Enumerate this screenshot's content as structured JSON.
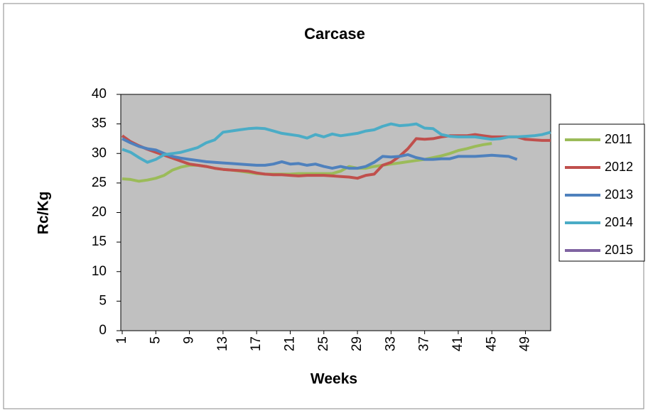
{
  "chart_data": {
    "type": "line",
    "title": "Carcase",
    "x_label": "Weeks",
    "y_label": "Rc/Kg",
    "x": [
      1,
      2,
      3,
      4,
      5,
      6,
      7,
      8,
      9,
      10,
      11,
      12,
      13,
      14,
      15,
      16,
      17,
      18,
      19,
      20,
      21,
      22,
      23,
      24,
      25,
      26,
      27,
      28,
      29,
      30,
      31,
      32,
      33,
      34,
      35,
      36,
      37,
      38,
      39,
      40,
      41,
      42,
      43,
      44,
      45,
      46,
      47,
      48,
      49,
      50,
      51,
      52
    ],
    "xlim": [
      1,
      52
    ],
    "xticks": [
      1,
      5,
      9,
      13,
      17,
      21,
      25,
      29,
      33,
      37,
      41,
      45,
      49
    ],
    "ylim": [
      0,
      40
    ],
    "yticks": [
      0,
      5,
      10,
      15,
      20,
      25,
      30,
      35,
      40
    ],
    "grid": false,
    "legend": "right",
    "series": [
      {
        "name": "2011",
        "color": "#9bbb59",
        "values": [
          25.7,
          25.6,
          25.3,
          25.5,
          25.8,
          26.3,
          27.2,
          27.7,
          28,
          28,
          27.8,
          27.5,
          27.3,
          27.2,
          27,
          26.8,
          26.6,
          26.5,
          26.5,
          26.5,
          26.5,
          26.6,
          26.6,
          26.6,
          26.6,
          26.6,
          27,
          27.8,
          27.5,
          27.5,
          27.8,
          28,
          28.2,
          28.4,
          28.6,
          28.8,
          29,
          29.3,
          29.6,
          30,
          30.5,
          30.8,
          31.2,
          31.5,
          31.7,
          null,
          null,
          null,
          null,
          null,
          null,
          null
        ]
      },
      {
        "name": "2012",
        "color": "#c0504d",
        "values": [
          33,
          32,
          31.3,
          30.7,
          30.2,
          29.7,
          29.2,
          28.7,
          28.2,
          28,
          27.8,
          27.5,
          27.3,
          27.2,
          27.1,
          27,
          26.7,
          26.5,
          26.4,
          26.4,
          26.3,
          26.2,
          26.3,
          26.3,
          26.3,
          26.2,
          26.1,
          26,
          25.8,
          26.3,
          26.5,
          28,
          28.5,
          29.5,
          30.8,
          32.5,
          32.4,
          32.5,
          32.8,
          33,
          33,
          33,
          33.2,
          33,
          32.8,
          32.8,
          32.8,
          32.8,
          32.4,
          32.3,
          32.2,
          32.2
        ]
      },
      {
        "name": "2013",
        "color": "#4f81bd",
        "values": [
          32.5,
          31.8,
          31.2,
          30.8,
          30.6,
          30,
          29.5,
          29.2,
          29,
          28.8,
          28.6,
          28.5,
          28.4,
          28.3,
          28.2,
          28.1,
          28,
          28,
          28.2,
          28.6,
          28.2,
          28.3,
          28,
          28.2,
          27.8,
          27.5,
          27.8,
          27.5,
          27.5,
          27.8,
          28.5,
          29.5,
          29.4,
          29.5,
          29.8,
          29.3,
          29,
          29,
          29.1,
          29.1,
          29.5,
          29.5,
          29.5,
          29.6,
          29.7,
          29.6,
          29.5,
          29,
          null,
          null,
          null,
          null
        ]
      },
      {
        "name": "2014",
        "color": "#4bacc6",
        "values": [
          30.7,
          30.2,
          29.3,
          28.5,
          29,
          29.8,
          30,
          30.2,
          30.6,
          31,
          31.8,
          32.3,
          33.6,
          33.8,
          34,
          34.2,
          34.3,
          34.2,
          33.8,
          33.4,
          33.2,
          33,
          32.6,
          33.2,
          32.8,
          33.3,
          33,
          33.2,
          33.4,
          33.8,
          34,
          34.6,
          35,
          34.7,
          34.8,
          35,
          34.3,
          34.2,
          33.2,
          32.9,
          32.8,
          32.8,
          32.8,
          32.6,
          32.4,
          32.5,
          32.8,
          32.8,
          32.9,
          33,
          33.2,
          33.6
        ]
      },
      {
        "name": "2015",
        "color": "#8064a2",
        "values": [
          null,
          null,
          null,
          null,
          null,
          null,
          null,
          null,
          null,
          null,
          null,
          null,
          null,
          null,
          null,
          null,
          null,
          null,
          null,
          null,
          null,
          null,
          null,
          null,
          null,
          null,
          null,
          null,
          null,
          null,
          null,
          null,
          null,
          null,
          null,
          null,
          null,
          null,
          null,
          null,
          null,
          null,
          null,
          null,
          null,
          null,
          null,
          null,
          null,
          null,
          null,
          null
        ]
      }
    ]
  }
}
